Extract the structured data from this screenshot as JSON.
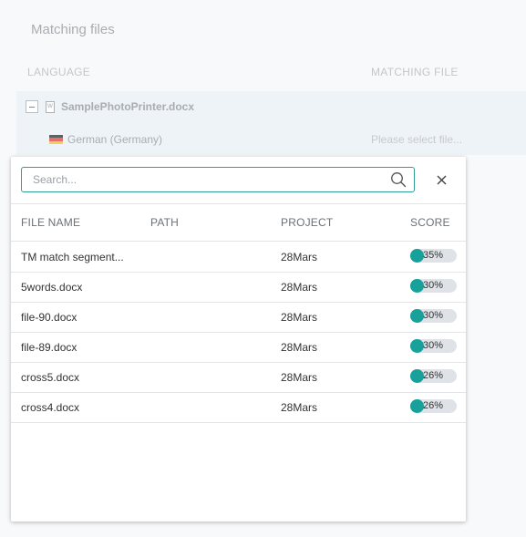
{
  "background": {
    "title": "Matching files",
    "columns": {
      "language": "LANGUAGE",
      "matching_file": "MATCHING FILE"
    },
    "file_name": "SamplePhotoPrinter.docx",
    "language": "German (Germany)",
    "select_placeholder": "Please select file..."
  },
  "popup": {
    "search_placeholder": "Search...",
    "headers": {
      "file_name": "FILE NAME",
      "path": "PATH",
      "project": "PROJECT",
      "score": "SCORE"
    },
    "rows": [
      {
        "name": "TM match segment...",
        "path": "",
        "project": "28Mars",
        "score": "35%"
      },
      {
        "name": "5words.docx",
        "path": "",
        "project": "28Mars",
        "score": "30%"
      },
      {
        "name": "file-90.docx",
        "path": "",
        "project": "28Mars",
        "score": "30%"
      },
      {
        "name": "file-89.docx",
        "path": "",
        "project": "28Mars",
        "score": "30%"
      },
      {
        "name": "cross5.docx",
        "path": "",
        "project": "28Mars",
        "score": "26%"
      },
      {
        "name": "cross4.docx",
        "path": "",
        "project": "28Mars",
        "score": "26%"
      }
    ]
  },
  "colors": {
    "accent": "#17a19a",
    "search_border": "#2e9e97"
  },
  "icons": {
    "search": "search-icon",
    "close": "close-icon",
    "collapse": "minus-box-icon",
    "document": "word-doc-icon",
    "flag": "german-flag-icon"
  }
}
